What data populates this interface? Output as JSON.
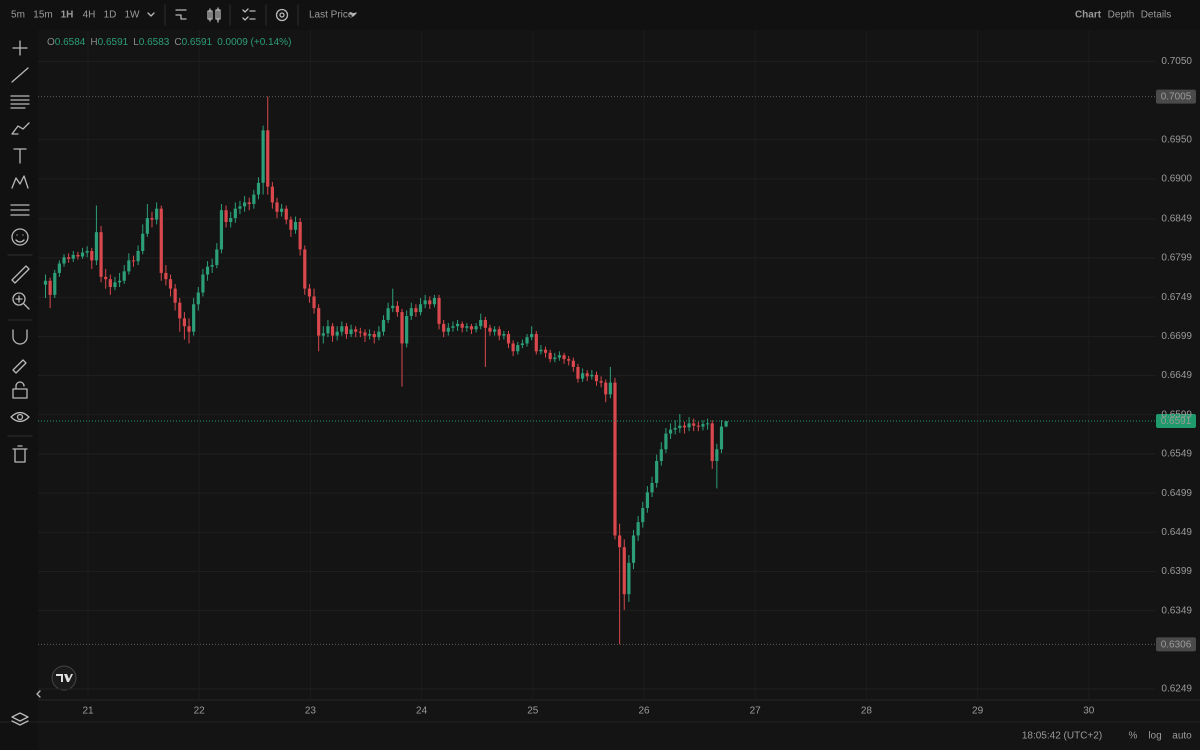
{
  "toolbar": {
    "intervals": [
      "5m",
      "15m",
      "1H",
      "4H",
      "1D",
      "1W"
    ],
    "active_interval": 2,
    "price_source": "Last Price",
    "views": [
      "Chart",
      "Depth",
      "Details"
    ],
    "active_view": 0
  },
  "legend": {
    "items": [
      {
        "key": "O",
        "value": 0.6584
      },
      {
        "key": "H",
        "value": 0.6591
      },
      {
        "key": "L",
        "value": 0.6583
      },
      {
        "key": "C",
        "value": 0.6591
      }
    ],
    "change": "0.0009 (+0.14%)"
  },
  "footer": {
    "time": "18:05:42 (UTC+2)",
    "options": [
      "%",
      "log",
      "auto"
    ]
  },
  "chart_data": {
    "type": "candlestick",
    "up_color": "#2c9e78",
    "down_color": "#d9484c",
    "grid": true,
    "ylim": [
      0.6235,
      0.709
    ],
    "yticks": [
      {
        "value": 0.705,
        "label": "0.7050"
      },
      {
        "value": 0.695,
        "label": "0.6950"
      },
      {
        "value": 0.69,
        "label": "0.6900"
      },
      0.6849,
      0.6799,
      0.6749,
      0.6699,
      0.6649,
      0.6599,
      0.6549,
      0.6499,
      0.6449,
      0.6399,
      0.6349,
      0.6249
    ],
    "xticks": [
      "21",
      "22",
      "23",
      "24",
      "25",
      "26",
      "27",
      "28",
      "29",
      "30"
    ],
    "price_lines": [
      {
        "value": 0.7005,
        "color": "#4a4a4a"
      },
      {
        "value": 0.6306,
        "color": "#4a4a4a"
      },
      {
        "value": 0.6591,
        "color": "#1f9a6c"
      }
    ],
    "candles": [
      [
        0.6765,
        0.6778,
        0.6748,
        0.677
      ],
      [
        0.677,
        0.6774,
        0.6735,
        0.6752
      ],
      [
        0.6752,
        0.6784,
        0.6748,
        0.678
      ],
      [
        0.678,
        0.6796,
        0.6775,
        0.6792
      ],
      [
        0.6792,
        0.6804,
        0.6788,
        0.68
      ],
      [
        0.68,
        0.6805,
        0.6793,
        0.6798
      ],
      [
        0.6798,
        0.6808,
        0.6794,
        0.6803
      ],
      [
        0.6803,
        0.6807,
        0.6797,
        0.6801
      ],
      [
        0.6801,
        0.6812,
        0.6798,
        0.6806
      ],
      [
        0.6806,
        0.6814,
        0.68,
        0.6808
      ],
      [
        0.6808,
        0.6812,
        0.6785,
        0.6796
      ],
      [
        0.6796,
        0.6866,
        0.679,
        0.6832
      ],
      [
        0.6832,
        0.684,
        0.6768,
        0.6775
      ],
      [
        0.6775,
        0.6785,
        0.676,
        0.6772
      ],
      [
        0.6772,
        0.6778,
        0.6752,
        0.6762
      ],
      [
        0.6762,
        0.6775,
        0.6758,
        0.6768
      ],
      [
        0.6768,
        0.678,
        0.6762,
        0.677
      ],
      [
        0.677,
        0.679,
        0.6766,
        0.6782
      ],
      [
        0.6782,
        0.6805,
        0.6778,
        0.6796
      ],
      [
        0.6796,
        0.6802,
        0.6788,
        0.6795
      ],
      [
        0.6795,
        0.6815,
        0.679,
        0.6808
      ],
      [
        0.6808,
        0.6842,
        0.6804,
        0.683
      ],
      [
        0.683,
        0.6868,
        0.6826,
        0.685
      ],
      [
        0.685,
        0.6858,
        0.6838,
        0.6848
      ],
      [
        0.6848,
        0.687,
        0.6842,
        0.6862
      ],
      [
        0.6862,
        0.6866,
        0.677,
        0.678
      ],
      [
        0.678,
        0.679,
        0.6764,
        0.6772
      ],
      [
        0.6772,
        0.6778,
        0.675,
        0.676
      ],
      [
        0.676,
        0.6766,
        0.6732,
        0.6742
      ],
      [
        0.6742,
        0.6748,
        0.6705,
        0.6722
      ],
      [
        0.6722,
        0.673,
        0.6695,
        0.6712
      ],
      [
        0.6712,
        0.6722,
        0.669,
        0.6705
      ],
      [
        0.6705,
        0.6748,
        0.67,
        0.674
      ],
      [
        0.674,
        0.6762,
        0.6732,
        0.6755
      ],
      [
        0.6755,
        0.6785,
        0.675,
        0.6778
      ],
      [
        0.6778,
        0.6795,
        0.677,
        0.6788
      ],
      [
        0.6788,
        0.6798,
        0.678,
        0.679
      ],
      [
        0.679,
        0.6818,
        0.6786,
        0.681
      ],
      [
        0.681,
        0.6868,
        0.6805,
        0.686
      ],
      [
        0.686,
        0.6866,
        0.6838,
        0.6845
      ],
      [
        0.6845,
        0.6858,
        0.6838,
        0.685
      ],
      [
        0.685,
        0.687,
        0.6844,
        0.6862
      ],
      [
        0.6862,
        0.6872,
        0.6855,
        0.6865
      ],
      [
        0.6865,
        0.6878,
        0.6858,
        0.687
      ],
      [
        0.687,
        0.6876,
        0.686,
        0.6868
      ],
      [
        0.6868,
        0.6886,
        0.6862,
        0.688
      ],
      [
        0.688,
        0.6902,
        0.6874,
        0.6895
      ],
      [
        0.6895,
        0.6968,
        0.688,
        0.6962
      ],
      [
        0.6962,
        0.7005,
        0.688,
        0.689
      ],
      [
        0.689,
        0.6896,
        0.6862,
        0.687
      ],
      [
        0.687,
        0.6876,
        0.685,
        0.6858
      ],
      [
        0.6858,
        0.6868,
        0.6852,
        0.6862
      ],
      [
        0.6862,
        0.6866,
        0.6842,
        0.6848
      ],
      [
        0.6848,
        0.6852,
        0.6826,
        0.6835
      ],
      [
        0.6835,
        0.6852,
        0.683,
        0.6845
      ],
      [
        0.6845,
        0.685,
        0.6802,
        0.681
      ],
      [
        0.681,
        0.6815,
        0.6752,
        0.676
      ],
      [
        0.676,
        0.6766,
        0.6742,
        0.675
      ],
      [
        0.675,
        0.676,
        0.6728,
        0.6735
      ],
      [
        0.6735,
        0.674,
        0.668,
        0.67
      ],
      [
        0.67,
        0.6712,
        0.669,
        0.6703
      ],
      [
        0.6703,
        0.672,
        0.6698,
        0.6712
      ],
      [
        0.6712,
        0.6716,
        0.6692,
        0.67
      ],
      [
        0.67,
        0.6712,
        0.6694,
        0.6705
      ],
      [
        0.6705,
        0.6718,
        0.67,
        0.6712
      ],
      [
        0.6712,
        0.6716,
        0.6696,
        0.6702
      ],
      [
        0.6702,
        0.6714,
        0.6698,
        0.6708
      ],
      [
        0.6708,
        0.6712,
        0.6698,
        0.6705
      ],
      [
        0.6705,
        0.671,
        0.6698,
        0.6704
      ],
      [
        0.6704,
        0.6708,
        0.6692,
        0.67
      ],
      [
        0.67,
        0.6708,
        0.6695,
        0.6702
      ],
      [
        0.6702,
        0.6706,
        0.669,
        0.6698
      ],
      [
        0.6698,
        0.6712,
        0.6694,
        0.6705
      ],
      [
        0.6705,
        0.6726,
        0.67,
        0.672
      ],
      [
        0.672,
        0.6742,
        0.6716,
        0.6735
      ],
      [
        0.6735,
        0.676,
        0.673,
        0.6738
      ],
      [
        0.6738,
        0.6744,
        0.6724,
        0.673
      ],
      [
        0.673,
        0.6734,
        0.6635,
        0.669
      ],
      [
        0.669,
        0.6732,
        0.6685,
        0.6725
      ],
      [
        0.6725,
        0.6742,
        0.672,
        0.6735
      ],
      [
        0.6735,
        0.674,
        0.6724,
        0.673
      ],
      [
        0.673,
        0.6748,
        0.6726,
        0.674
      ],
      [
        0.674,
        0.6752,
        0.6735,
        0.6745
      ],
      [
        0.6745,
        0.675,
        0.6734,
        0.674
      ],
      [
        0.674,
        0.6752,
        0.6736,
        0.6748
      ],
      [
        0.6748,
        0.6752,
        0.6708,
        0.6715
      ],
      [
        0.6715,
        0.672,
        0.6698,
        0.6705
      ],
      [
        0.6705,
        0.6716,
        0.67,
        0.671
      ],
      [
        0.671,
        0.6718,
        0.6705,
        0.6712
      ],
      [
        0.6712,
        0.672,
        0.6706,
        0.6715
      ],
      [
        0.6715,
        0.6718,
        0.6704,
        0.671
      ],
      [
        0.671,
        0.6716,
        0.6705,
        0.6712
      ],
      [
        0.6712,
        0.6715,
        0.6702,
        0.6708
      ],
      [
        0.6708,
        0.6716,
        0.6704,
        0.6712
      ],
      [
        0.6712,
        0.6728,
        0.6708,
        0.672
      ],
      [
        0.672,
        0.6724,
        0.666,
        0.671
      ],
      [
        0.671,
        0.6714,
        0.67,
        0.6705
      ],
      [
        0.6705,
        0.6712,
        0.67,
        0.6708
      ],
      [
        0.6708,
        0.6712,
        0.6694,
        0.67
      ],
      [
        0.67,
        0.6706,
        0.6695,
        0.6702
      ],
      [
        0.6702,
        0.6706,
        0.6684,
        0.669
      ],
      [
        0.669,
        0.6694,
        0.6674,
        0.668
      ],
      [
        0.668,
        0.6692,
        0.6676,
        0.6688
      ],
      [
        0.6688,
        0.6695,
        0.6684,
        0.669
      ],
      [
        0.669,
        0.6702,
        0.6686,
        0.6698
      ],
      [
        0.6698,
        0.6712,
        0.6694,
        0.6702
      ],
      [
        0.6702,
        0.6706,
        0.6676,
        0.668
      ],
      [
        0.668,
        0.6688,
        0.6676,
        0.6682
      ],
      [
        0.6682,
        0.6686,
        0.6672,
        0.6678
      ],
      [
        0.6678,
        0.6682,
        0.6666,
        0.667
      ],
      [
        0.667,
        0.6678,
        0.6666,
        0.6672
      ],
      [
        0.6672,
        0.668,
        0.6668,
        0.6675
      ],
      [
        0.6675,
        0.6678,
        0.6664,
        0.667
      ],
      [
        0.667,
        0.6674,
        0.6662,
        0.6668
      ],
      [
        0.6668,
        0.6672,
        0.6654,
        0.666
      ],
      [
        0.666,
        0.6664,
        0.664,
        0.6645
      ],
      [
        0.6645,
        0.6658,
        0.6641,
        0.6652
      ],
      [
        0.6652,
        0.6656,
        0.6642,
        0.6648
      ],
      [
        0.6648,
        0.6656,
        0.6644,
        0.665
      ],
      [
        0.665,
        0.6654,
        0.6636,
        0.6642
      ],
      [
        0.6642,
        0.6648,
        0.6634,
        0.664
      ],
      [
        0.664,
        0.6644,
        0.6615,
        0.6625
      ],
      [
        0.6625,
        0.666,
        0.662,
        0.664
      ],
      [
        0.664,
        0.6646,
        0.644,
        0.6445
      ],
      [
        0.6445,
        0.646,
        0.6306,
        0.643
      ],
      [
        0.643,
        0.644,
        0.635,
        0.637
      ],
      [
        0.637,
        0.642,
        0.636,
        0.641
      ],
      [
        0.641,
        0.6452,
        0.6402,
        0.6445
      ],
      [
        0.6445,
        0.647,
        0.6438,
        0.6462
      ],
      [
        0.6462,
        0.6488,
        0.6455,
        0.648
      ],
      [
        0.648,
        0.6508,
        0.6474,
        0.65
      ],
      [
        0.65,
        0.652,
        0.6494,
        0.6512
      ],
      [
        0.6512,
        0.6548,
        0.6506,
        0.654
      ],
      [
        0.654,
        0.6564,
        0.6534,
        0.6555
      ],
      [
        0.6555,
        0.6582,
        0.655,
        0.6575
      ],
      [
        0.6575,
        0.6588,
        0.6568,
        0.658
      ],
      [
        0.658,
        0.6592,
        0.6574,
        0.6582
      ],
      [
        0.6582,
        0.66,
        0.6576,
        0.6585
      ],
      [
        0.6585,
        0.659,
        0.6575,
        0.6583
      ],
      [
        0.6583,
        0.6596,
        0.6578,
        0.6588
      ],
      [
        0.6588,
        0.6594,
        0.6578,
        0.6585
      ],
      [
        0.6585,
        0.659,
        0.6578,
        0.6584
      ],
      [
        0.6584,
        0.6592,
        0.6579,
        0.6587
      ],
      [
        0.6587,
        0.6594,
        0.658,
        0.6588
      ],
      [
        0.6588,
        0.6592,
        0.653,
        0.654
      ],
      [
        0.654,
        0.6562,
        0.6505,
        0.6555
      ],
      [
        0.6555,
        0.6592,
        0.655,
        0.6584
      ],
      [
        0.6584,
        0.6591,
        0.6583,
        0.6591
      ]
    ]
  }
}
